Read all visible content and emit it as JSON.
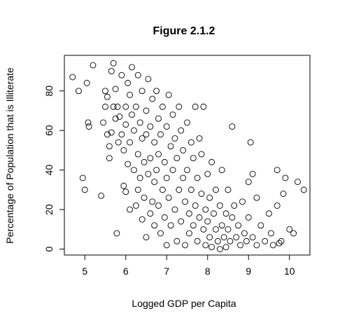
{
  "chart_data": {
    "type": "scatter",
    "title": "Figure 2.1.2",
    "xlabel": "Logged GDP per Capita",
    "ylabel": "Percentage of Population that is Illiterate",
    "xlim": [
      4.5,
      10.5
    ],
    "ylim": [
      -3,
      98
    ],
    "xticks": [
      5,
      6,
      7,
      8,
      9,
      10
    ],
    "yticks": [
      0,
      20,
      40,
      60,
      80
    ],
    "grid": false,
    "legend": "none",
    "points": [
      [
        4.7,
        87
      ],
      [
        4.85,
        80
      ],
      [
        4.95,
        36
      ],
      [
        5.0,
        30
      ],
      [
        5.05,
        84
      ],
      [
        5.08,
        64
      ],
      [
        5.1,
        62
      ],
      [
        5.2,
        93
      ],
      [
        5.4,
        27
      ],
      [
        5.45,
        64
      ],
      [
        5.5,
        72
      ],
      [
        5.5,
        80
      ],
      [
        5.55,
        58
      ],
      [
        5.55,
        77
      ],
      [
        5.6,
        46
      ],
      [
        5.6,
        52
      ],
      [
        5.65,
        90
      ],
      [
        5.65,
        59
      ],
      [
        5.7,
        94
      ],
      [
        5.7,
        72
      ],
      [
        5.75,
        81
      ],
      [
        5.75,
        66
      ],
      [
        5.78,
        8
      ],
      [
        5.8,
        72
      ],
      [
        5.82,
        54
      ],
      [
        5.85,
        67
      ],
      [
        5.9,
        88
      ],
      [
        5.9,
        58
      ],
      [
        5.95,
        32
      ],
      [
        5.95,
        50
      ],
      [
        6.0,
        72
      ],
      [
        6.0,
        63
      ],
      [
        6.0,
        29
      ],
      [
        6.05,
        84
      ],
      [
        6.05,
        43
      ],
      [
        6.1,
        78
      ],
      [
        6.1,
        54
      ],
      [
        6.1,
        20
      ],
      [
        6.15,
        68
      ],
      [
        6.15,
        92
      ],
      [
        6.2,
        40
      ],
      [
        6.2,
        60
      ],
      [
        6.25,
        72
      ],
      [
        6.25,
        22
      ],
      [
        6.3,
        88
      ],
      [
        6.3,
        48
      ],
      [
        6.3,
        30
      ],
      [
        6.35,
        64
      ],
      [
        6.35,
        36
      ],
      [
        6.4,
        80
      ],
      [
        6.4,
        56
      ],
      [
        6.4,
        15
      ],
      [
        6.45,
        44
      ],
      [
        6.45,
        26
      ],
      [
        6.5,
        70
      ],
      [
        6.5,
        58
      ],
      [
        6.5,
        6
      ],
      [
        6.55,
        86
      ],
      [
        6.55,
        38
      ],
      [
        6.6,
        46
      ],
      [
        6.6,
        62
      ],
      [
        6.6,
        18
      ],
      [
        6.65,
        76
      ],
      [
        6.65,
        24
      ],
      [
        6.7,
        54
      ],
      [
        6.7,
        34
      ],
      [
        6.7,
        12
      ],
      [
        6.75,
        80
      ],
      [
        6.75,
        40
      ],
      [
        6.8,
        66
      ],
      [
        6.8,
        22
      ],
      [
        6.8,
        48
      ],
      [
        6.85,
        58
      ],
      [
        6.85,
        8
      ],
      [
        6.9,
        72
      ],
      [
        6.9,
        30
      ],
      [
        6.95,
        44
      ],
      [
        6.95,
        16
      ],
      [
        7.0,
        62
      ],
      [
        7.0,
        36
      ],
      [
        7.0,
        2
      ],
      [
        7.05,
        78
      ],
      [
        7.05,
        26
      ],
      [
        7.1,
        52
      ],
      [
        7.1,
        12
      ],
      [
        7.15,
        68
      ],
      [
        7.15,
        40
      ],
      [
        7.2,
        56
      ],
      [
        7.2,
        20
      ],
      [
        7.25,
        46
      ],
      [
        7.25,
        4
      ],
      [
        7.3,
        72
      ],
      [
        7.3,
        30
      ],
      [
        7.35,
        60
      ],
      [
        7.35,
        14
      ],
      [
        7.4,
        50
      ],
      [
        7.4,
        36
      ],
      [
        7.45,
        24
      ],
      [
        7.45,
        2
      ],
      [
        7.5,
        64
      ],
      [
        7.5,
        40
      ],
      [
        7.55,
        18
      ],
      [
        7.55,
        8
      ],
      [
        7.6,
        54
      ],
      [
        7.6,
        30
      ],
      [
        7.65,
        12
      ],
      [
        7.65,
        46
      ],
      [
        7.7,
        72
      ],
      [
        7.7,
        22
      ],
      [
        7.75,
        36
      ],
      [
        7.75,
        4
      ],
      [
        7.8,
        56
      ],
      [
        7.8,
        16
      ],
      [
        7.85,
        28
      ],
      [
        7.85,
        48
      ],
      [
        7.9,
        10
      ],
      [
        7.9,
        72
      ],
      [
        7.95,
        20
      ],
      [
        7.95,
        2
      ],
      [
        8.0,
        38
      ],
      [
        8.0,
        14
      ],
      [
        8.05,
        6
      ],
      [
        8.05,
        26
      ],
      [
        8.1,
        44
      ],
      [
        8.1,
        1
      ],
      [
        8.15,
        18
      ],
      [
        8.2,
        10
      ],
      [
        8.2,
        30
      ],
      [
        8.25,
        4
      ],
      [
        8.3,
        22
      ],
      [
        8.3,
        0
      ],
      [
        8.35,
        40
      ],
      [
        8.35,
        12
      ],
      [
        8.4,
        6
      ],
      [
        8.45,
        18
      ],
      [
        8.45,
        1
      ],
      [
        8.5,
        30
      ],
      [
        8.5,
        10
      ],
      [
        8.55,
        4
      ],
      [
        8.6,
        62
      ],
      [
        8.6,
        16
      ],
      [
        8.65,
        22
      ],
      [
        8.7,
        6
      ],
      [
        8.75,
        12
      ],
      [
        8.8,
        2
      ],
      [
        8.85,
        24
      ],
      [
        8.9,
        8
      ],
      [
        8.95,
        4
      ],
      [
        9.0,
        34
      ],
      [
        9.0,
        16
      ],
      [
        9.05,
        54
      ],
      [
        9.1,
        38
      ],
      [
        9.1,
        6
      ],
      [
        9.2,
        26
      ],
      [
        9.2,
        2
      ],
      [
        9.3,
        12
      ],
      [
        9.4,
        4
      ],
      [
        9.5,
        18
      ],
      [
        9.55,
        8
      ],
      [
        9.6,
        2
      ],
      [
        9.7,
        22
      ],
      [
        9.7,
        40
      ],
      [
        9.8,
        4
      ],
      [
        9.85,
        28
      ],
      [
        9.9,
        36
      ],
      [
        10.0,
        10
      ],
      [
        10.1,
        8
      ],
      [
        10.2,
        34
      ],
      [
        10.35,
        30
      ],
      [
        9.75,
        3
      ]
    ]
  }
}
